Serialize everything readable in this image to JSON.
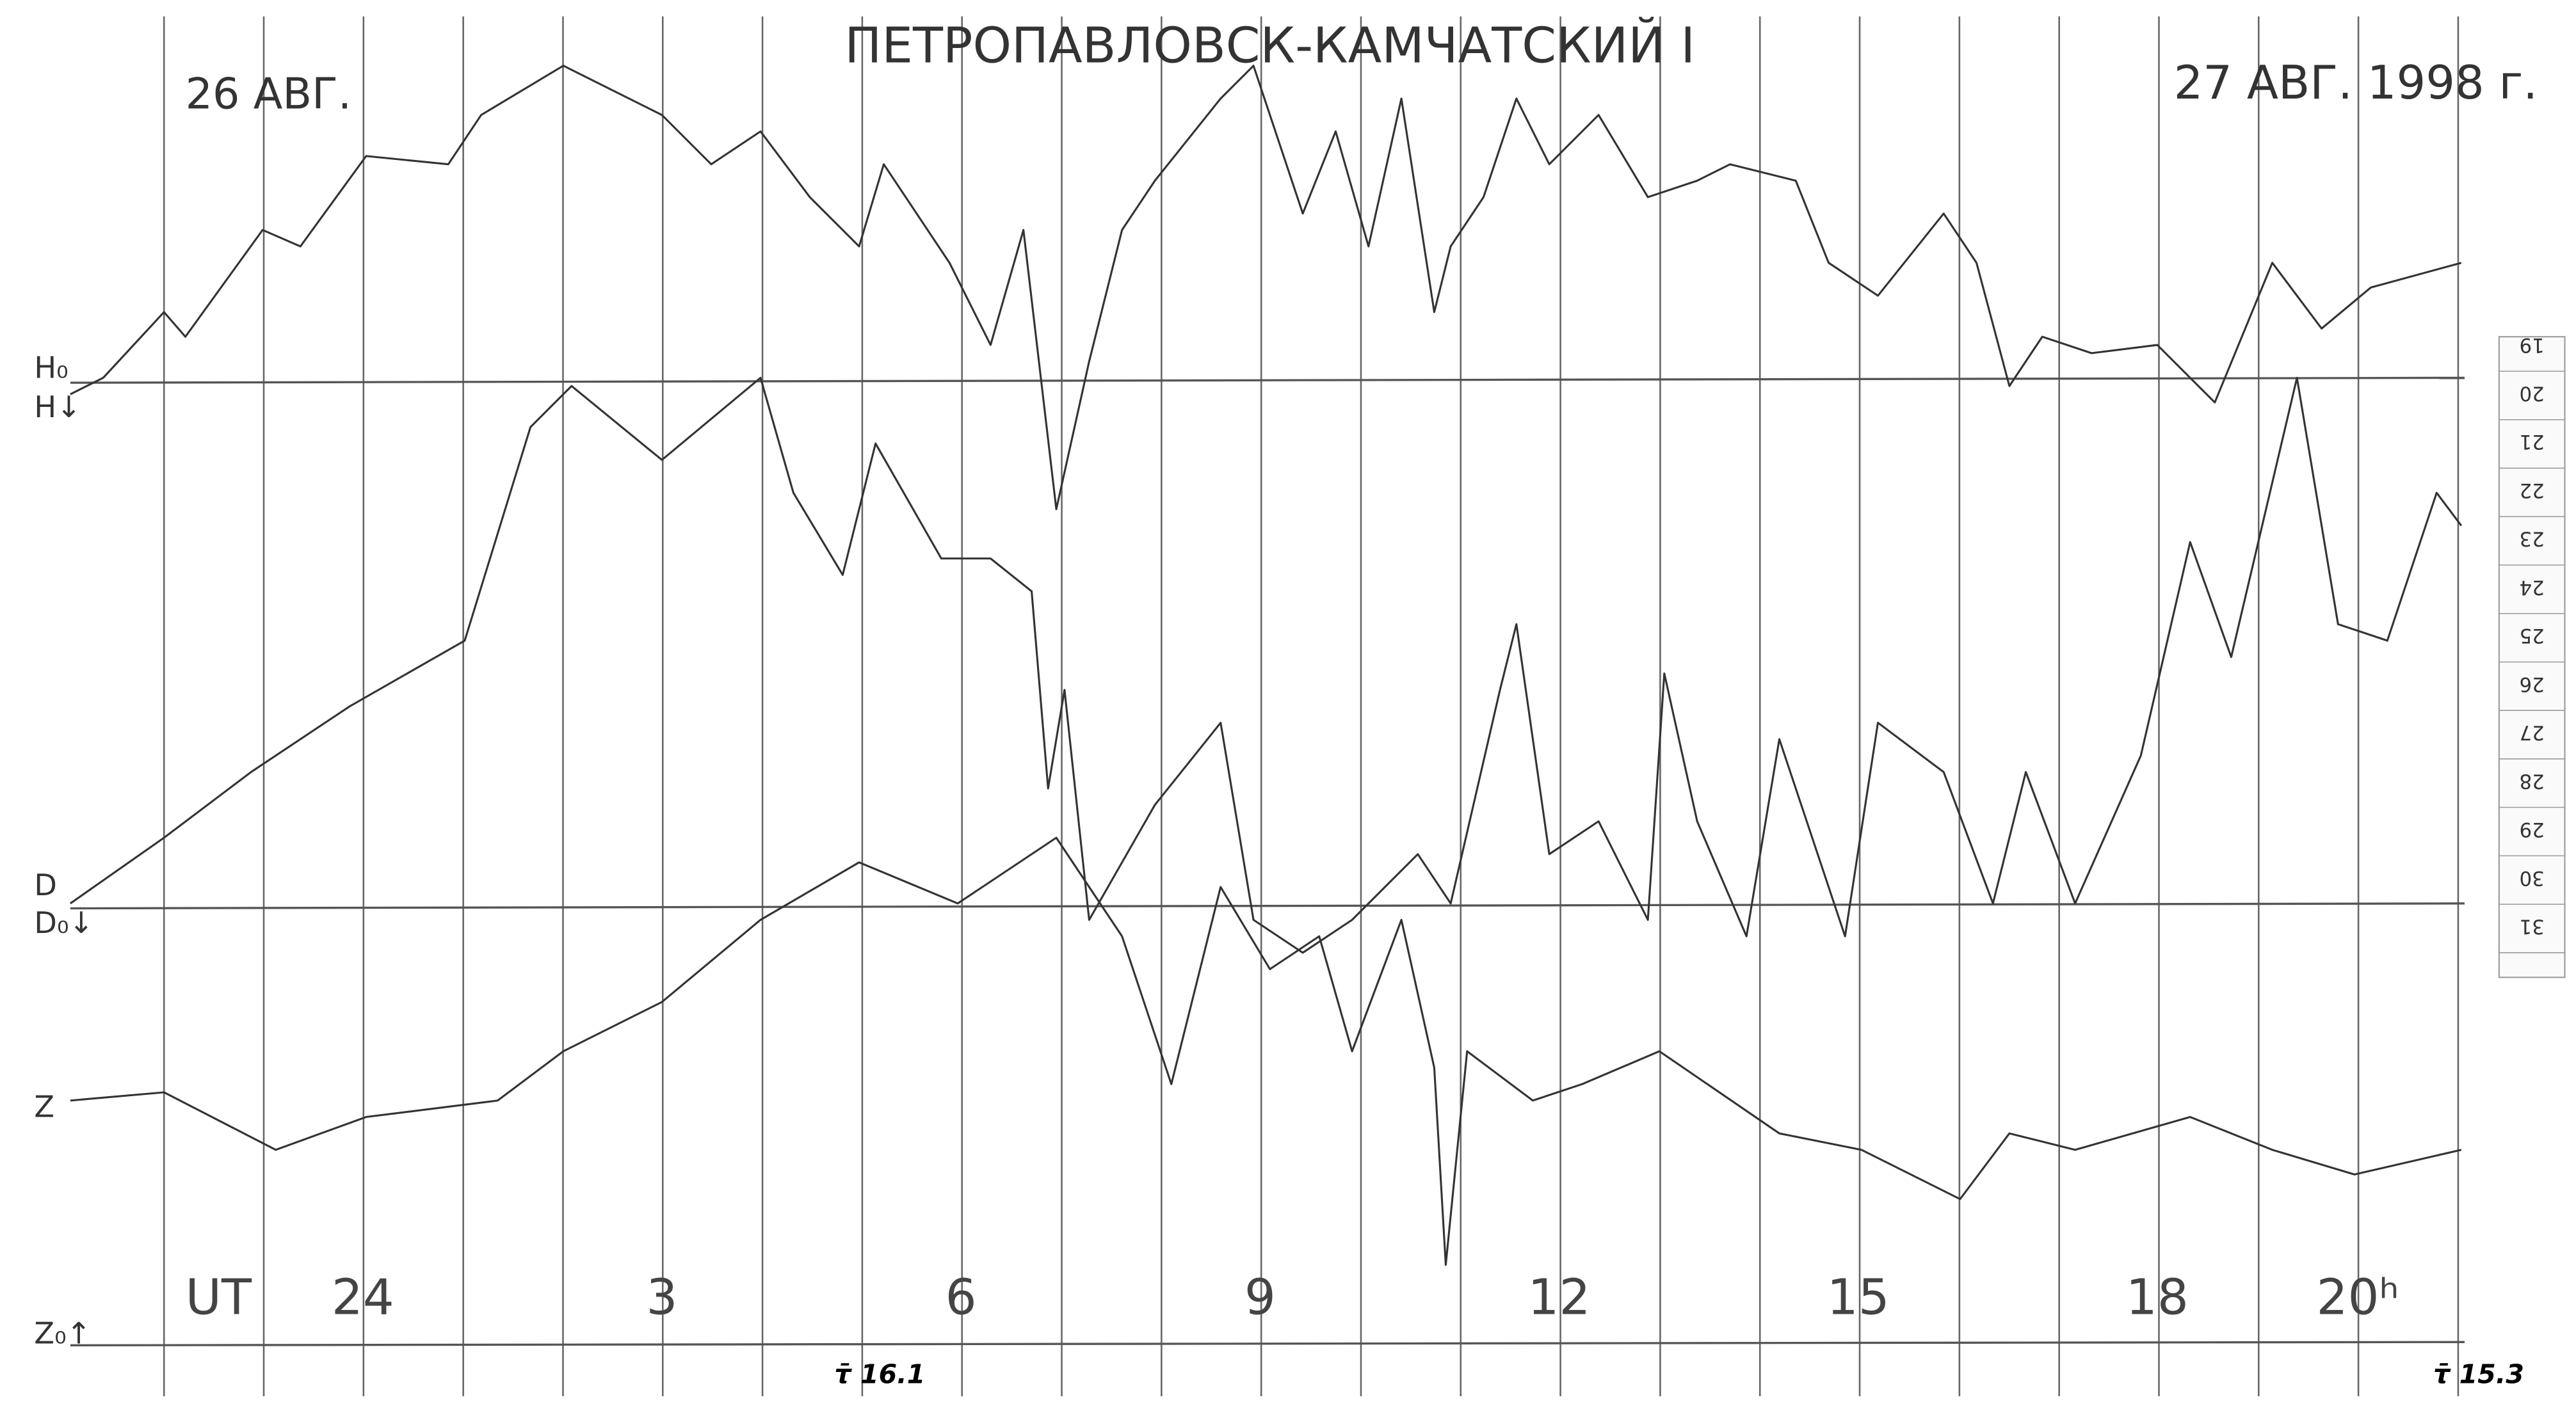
{
  "header": {
    "title": "ПЕТРОПАВЛОВСК-КАМЧАТСКИЙ I",
    "date_left": "26 АВГ.",
    "date_right": "27 АВГ. 1998 г."
  },
  "channels": {
    "h0": "H₀",
    "h": "H↓",
    "d": "D",
    "d0": "D₀↓",
    "z": "Z",
    "z0": "Z₀↑"
  },
  "time_axis": {
    "unit": "UT",
    "labels": [
      "24",
      "3",
      "6",
      "9",
      "12",
      "15",
      "18",
      "20ʰ"
    ]
  },
  "notes": {
    "tau_left": "τ̄ 16.1",
    "tau_right": "τ̄ 15.3"
  },
  "scale": [
    "19",
    "20",
    "21",
    "22",
    "23",
    "24",
    "25",
    "26",
    "27",
    "28",
    "29",
    "30",
    "31"
  ]
}
